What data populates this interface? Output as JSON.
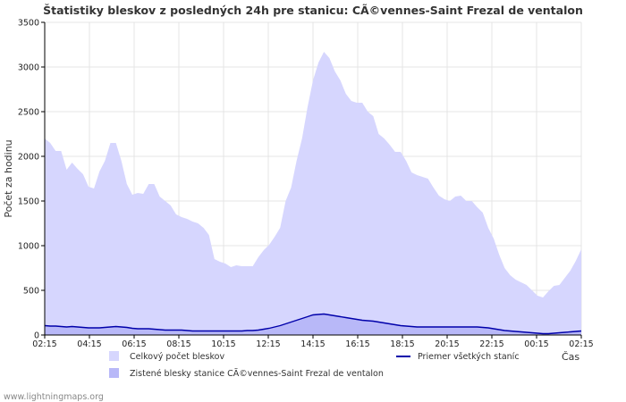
{
  "chart_data": {
    "type": "area",
    "title": "Štatistiky bleskov z posledných 24h pre stanicu: CÃ©vennes-Saint Frezal de ventalon",
    "xlabel": "Čas",
    "ylabel": "Počet za hodinu",
    "ylim": [
      0,
      3500
    ],
    "yticks": [
      0,
      500,
      1000,
      1500,
      2000,
      2500,
      3000,
      3500
    ],
    "grid": true,
    "x_start": "02:15",
    "x_interval_minutes": 20,
    "xtick_labels": [
      "02:15",
      "04:15",
      "06:15",
      "08:15",
      "10:15",
      "12:15",
      "14:15",
      "16:15",
      "18:15",
      "20:15",
      "22:15",
      "00:15",
      "02:15"
    ],
    "series": [
      {
        "name": "Celkový počet bleskov",
        "kind": "area",
        "color": "#d6d6fe",
        "values": [
          2200,
          2150,
          2060,
          2060,
          1850,
          1930,
          1860,
          1800,
          1660,
          1640,
          1830,
          1950,
          2150,
          2150,
          1950,
          1690,
          1570,
          1590,
          1580,
          1690,
          1690,
          1550,
          1500,
          1450,
          1350,
          1320,
          1300,
          1270,
          1250,
          1200,
          1120,
          850,
          820,
          800,
          760,
          780,
          770,
          770,
          770,
          870,
          950,
          1010,
          1100,
          1200,
          1500,
          1650,
          1950,
          2200,
          2550,
          2850,
          3050,
          3170,
          3100,
          2950,
          2850,
          2700,
          2620,
          2600,
          2600,
          2500,
          2450,
          2250,
          2200,
          2130,
          2050,
          2050,
          1950,
          1820,
          1790,
          1770,
          1750,
          1650,
          1560,
          1520,
          1500,
          1550,
          1560,
          1500,
          1500,
          1430,
          1370,
          1200,
          1080,
          900,
          750,
          670,
          620,
          590,
          560,
          500,
          440,
          420,
          490,
          550,
          560,
          640,
          720,
          830,
          960
        ]
      },
      {
        "name": "Zistené blesky stanice CÃ©vennes-Saint Frezal de ventalon",
        "kind": "area",
        "color": "#b8b8f8",
        "values": [
          110,
          100,
          100,
          100,
          95,
          95,
          95,
          90,
          85,
          80,
          85,
          90,
          95,
          100,
          95,
          90,
          80,
          75,
          75,
          75,
          70,
          65,
          60,
          60,
          60,
          60,
          55,
          50,
          50,
          50,
          50,
          50,
          50,
          50,
          50,
          50,
          50,
          55,
          55,
          60,
          70,
          80,
          95,
          110,
          130,
          150,
          170,
          190,
          210,
          230,
          235,
          240,
          230,
          220,
          210,
          200,
          190,
          180,
          170,
          165,
          160,
          150,
          140,
          130,
          120,
          110,
          105,
          100,
          95,
          95,
          95,
          95,
          95,
          95,
          95,
          95,
          95,
          95,
          95,
          95,
          90,
          85,
          75,
          65,
          55,
          50,
          45,
          40,
          35,
          30,
          25,
          20,
          20,
          25,
          30,
          35,
          40,
          45,
          50
        ]
      },
      {
        "name": "Priemer všetkých staníc",
        "kind": "line",
        "color": "#0000aa",
        "values": [
          105,
          100,
          100,
          95,
          90,
          95,
          90,
          85,
          80,
          80,
          80,
          85,
          90,
          95,
          90,
          85,
          75,
          70,
          70,
          70,
          65,
          60,
          55,
          55,
          55,
          55,
          50,
          45,
          45,
          45,
          45,
          45,
          45,
          45,
          45,
          45,
          45,
          50,
          50,
          55,
          65,
          75,
          90,
          105,
          125,
          145,
          165,
          185,
          205,
          225,
          230,
          235,
          225,
          215,
          205,
          195,
          185,
          175,
          165,
          160,
          155,
          145,
          135,
          125,
          115,
          105,
          100,
          95,
          90,
          90,
          90,
          90,
          90,
          90,
          90,
          90,
          90,
          90,
          90,
          90,
          85,
          80,
          70,
          60,
          50,
          45,
          40,
          35,
          30,
          25,
          20,
          15,
          15,
          20,
          25,
          30,
          35,
          40,
          45
        ]
      }
    ],
    "legend": {
      "position": "bottom",
      "entries": [
        "Celkový počet bleskov",
        "Zistené blesky stanice CÃ©vennes-Saint Frezal de ventalon",
        "Priemer všetkých staníc"
      ]
    }
  },
  "footer": "www.lightningmaps.org"
}
